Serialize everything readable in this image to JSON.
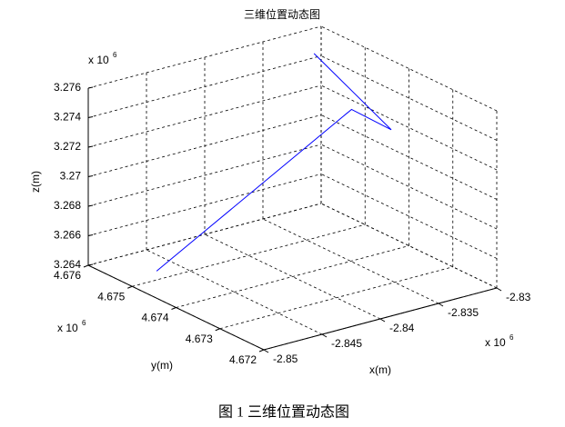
{
  "chart_data": {
    "type": "line3d",
    "title": "三维位置动态图",
    "caption": "图 1 三维位置动态图",
    "xlabel": "x(m)",
    "ylabel": "y(m)",
    "zlabel": "z(m)",
    "multiplier": {
      "base": "x 10",
      "exponent": "6"
    },
    "x": [
      -2.8479,
      -2.8338,
      -2.8319,
      -2.8325
    ],
    "y": [
      4.675,
      4.6743,
      4.6739,
      4.6755
    ],
    "z": [
      3.2646,
      3.2736,
      3.2724,
      3.2754
    ],
    "color": "#0000ff",
    "xlim": [
      -2.85,
      -2.83
    ],
    "xticks": [
      -2.85,
      -2.845,
      -2.84,
      -2.835,
      -2.83
    ],
    "ylim": [
      4.672,
      4.676
    ],
    "yticks": [
      4.672,
      4.673,
      4.674,
      4.675,
      4.676
    ],
    "zlim": [
      3.264,
      3.276
    ],
    "zticks": [
      3.264,
      3.266,
      3.268,
      3.27,
      3.272,
      3.274,
      3.276
    ],
    "grid": true
  }
}
